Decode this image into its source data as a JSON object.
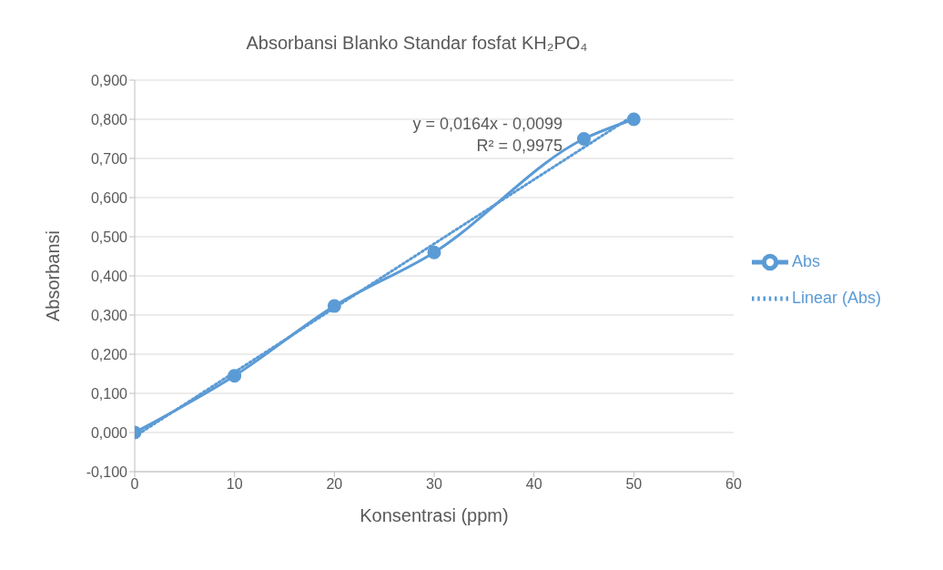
{
  "chart_data": {
    "type": "line",
    "title": "Absorbansi Blanko Standar fosfat KH₂PO₄",
    "xlabel": "Konsentrasi (ppm)",
    "ylabel": "Absorbansi",
    "x": [
      0,
      10,
      20,
      30,
      45,
      50
    ],
    "series": [
      {
        "name": "Abs",
        "color": "#5b9bd5",
        "values": [
          0,
          0.145,
          0.323,
          0.46,
          0.75,
          0.8
        ],
        "marker": "circle",
        "line_style": "solid"
      },
      {
        "name": "Linear (Abs)",
        "type": "line",
        "color": "#5b9bd5",
        "x": [
          0,
          50
        ],
        "values": [
          -0.01,
          0.81
        ],
        "marker": "none",
        "line_style": "dotted"
      }
    ],
    "xlim": [
      0,
      60
    ],
    "xticks": [
      0,
      10,
      20,
      30,
      40,
      50,
      60
    ],
    "ylim": [
      -0.1,
      0.9
    ],
    "yticks": [
      {
        "value": -0.1,
        "label": "-0,100"
      },
      {
        "value": 0,
        "label": "0,000"
      },
      {
        "value": 0.1,
        "label": "0,100"
      },
      {
        "value": 0.2,
        "label": "0,200"
      },
      {
        "value": 0.3,
        "label": "0,300"
      },
      {
        "value": 0.4,
        "label": "0,400"
      },
      {
        "value": 0.5,
        "label": "0,500"
      },
      {
        "value": 0.6,
        "label": "0,600"
      },
      {
        "value": 0.7,
        "label": "0,700"
      },
      {
        "value": 0.8,
        "label": "0,800"
      },
      {
        "value": 0.9,
        "label": "0,900"
      }
    ],
    "grid": "y",
    "legend": "right",
    "annotations": [
      "y = 0,0164x - 0,0099",
      "R² = 0,9975"
    ]
  }
}
